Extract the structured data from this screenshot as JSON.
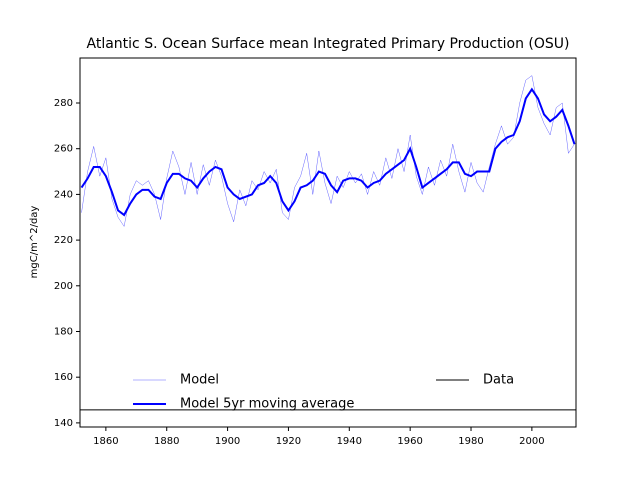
{
  "chart_data": {
    "type": "line",
    "title": "Atlantic S. Ocean Surface mean Integrated Primary Production (OSU)",
    "y_label": "mgC/m^2/day",
    "x": [
      1852,
      1854,
      1856,
      1858,
      1860,
      1862,
      1864,
      1866,
      1868,
      1870,
      1872,
      1874,
      1876,
      1878,
      1880,
      1882,
      1884,
      1886,
      1888,
      1890,
      1892,
      1894,
      1896,
      1898,
      1900,
      1902,
      1904,
      1906,
      1908,
      1910,
      1912,
      1914,
      1916,
      1918,
      1920,
      1922,
      1924,
      1926,
      1928,
      1930,
      1932,
      1934,
      1936,
      1938,
      1940,
      1942,
      1944,
      1946,
      1948,
      1950,
      1952,
      1954,
      1956,
      1958,
      1960,
      1962,
      1964,
      1966,
      1968,
      1970,
      1972,
      1974,
      1976,
      1978,
      1980,
      1982,
      1984,
      1986,
      1988,
      1990,
      1992,
      1994,
      1996,
      1998,
      2000,
      2002,
      2004,
      2006,
      2008,
      2010,
      2012,
      2014
    ],
    "series": [
      {
        "name": "Model",
        "color": "#0000ff",
        "width": 0.5,
        "opacity": 0.6,
        "values": [
          232,
          250,
          261,
          248,
          256,
          238,
          230,
          226,
          240,
          246,
          244,
          246,
          240,
          229,
          247,
          259,
          252,
          240,
          254,
          240,
          253,
          244,
          255,
          248,
          236,
          228,
          242,
          235,
          246,
          242,
          250,
          245,
          251,
          232,
          229,
          243,
          248,
          258,
          240,
          259,
          245,
          236,
          248,
          243,
          250,
          245,
          249,
          240,
          250,
          244,
          256,
          247,
          260,
          250,
          266,
          248,
          240,
          252,
          244,
          255,
          248,
          262,
          250,
          241,
          254,
          245,
          241,
          252,
          262,
          270,
          262,
          265,
          280,
          290,
          292,
          278,
          271,
          266,
          278,
          280,
          258,
          262
        ]
      },
      {
        "name": "Model 5yr moving average",
        "color": "#0000ff",
        "width": 2,
        "opacity": 1,
        "values": [
          243,
          247,
          252,
          252,
          248,
          241,
          233,
          231,
          236,
          240,
          242,
          242,
          239,
          238,
          245,
          249,
          249,
          247,
          246,
          243,
          247,
          250,
          252,
          251,
          243,
          240,
          238,
          239,
          240,
          244,
          245,
          248,
          245,
          237,
          233,
          237,
          243,
          244,
          246,
          250,
          249,
          244,
          241,
          246,
          247,
          247,
          246,
          243,
          245,
          246,
          249,
          251,
          253,
          255,
          260,
          252,
          243,
          245,
          247,
          249,
          251,
          254,
          254,
          249,
          248,
          250,
          250,
          250,
          260,
          263,
          265,
          266,
          272,
          282,
          286,
          282,
          275,
          272,
          274,
          277,
          270,
          262
        ]
      },
      {
        "name": "Data",
        "color": "#000000",
        "width": 1,
        "opacity": 1,
        "x": [
          1851.5,
          2014.5
        ],
        "values": [
          145.7,
          145.7
        ]
      }
    ],
    "xlim": [
      1851.5,
      2014.5
    ],
    "ylim": [
      138.2,
      299.7
    ],
    "xticks": [
      1860,
      1880,
      1900,
      1920,
      1940,
      1960,
      1980,
      2000
    ],
    "yticks": [
      140,
      160,
      180,
      200,
      220,
      240,
      260,
      280
    ],
    "legend": "lower center"
  }
}
